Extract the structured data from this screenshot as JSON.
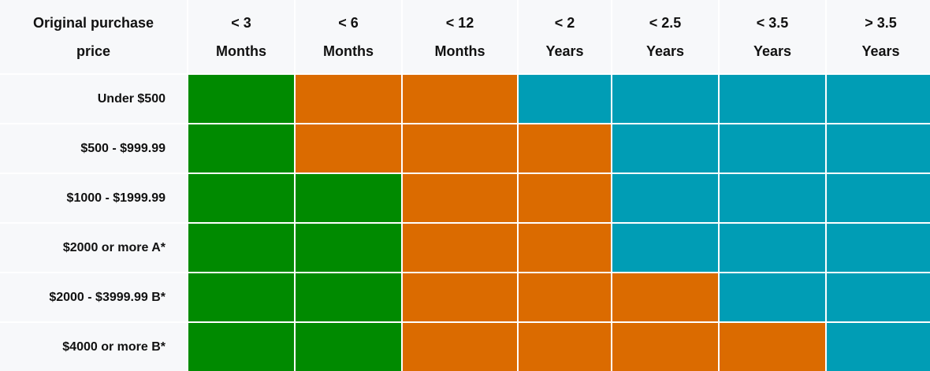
{
  "table": {
    "corner": [
      "Original purchase",
      "price"
    ],
    "columns": [
      {
        "line1": "< 3",
        "line2": "Months"
      },
      {
        "line1": "< 6",
        "line2": "Months"
      },
      {
        "line1": "< 12",
        "line2": "Months"
      },
      {
        "line1": "< 2",
        "line2": "Years"
      },
      {
        "line1": "< 2.5",
        "line2": "Years"
      },
      {
        "line1": "< 3.5",
        "line2": "Years"
      },
      {
        "line1": "> 3.5",
        "line2": "Years"
      }
    ],
    "rows": [
      {
        "label": "Under $500",
        "cells": [
          "green",
          "orange",
          "orange",
          "teal",
          "teal",
          "teal",
          "teal"
        ]
      },
      {
        "label": "$500 - $999.99",
        "cells": [
          "green",
          "orange",
          "orange",
          "orange",
          "teal",
          "teal",
          "teal"
        ]
      },
      {
        "label": "$1000 - $1999.99",
        "cells": [
          "green",
          "green",
          "orange",
          "orange",
          "teal",
          "teal",
          "teal"
        ]
      },
      {
        "label": "$2000 or more A*",
        "cells": [
          "green",
          "green",
          "orange",
          "orange",
          "teal",
          "teal",
          "teal"
        ]
      },
      {
        "label": "$2000 - $3999.99 B*",
        "cells": [
          "green",
          "green",
          "orange",
          "orange",
          "orange",
          "teal",
          "teal"
        ]
      },
      {
        "label": "$4000 or more B*",
        "cells": [
          "green",
          "green",
          "orange",
          "orange",
          "orange",
          "orange",
          "teal"
        ]
      }
    ]
  },
  "colors": {
    "green": "#008a00",
    "orange": "#db6b00",
    "teal": "#009db5",
    "header_bg": "#f7f8fa",
    "grid_line": "#ffffff"
  }
}
